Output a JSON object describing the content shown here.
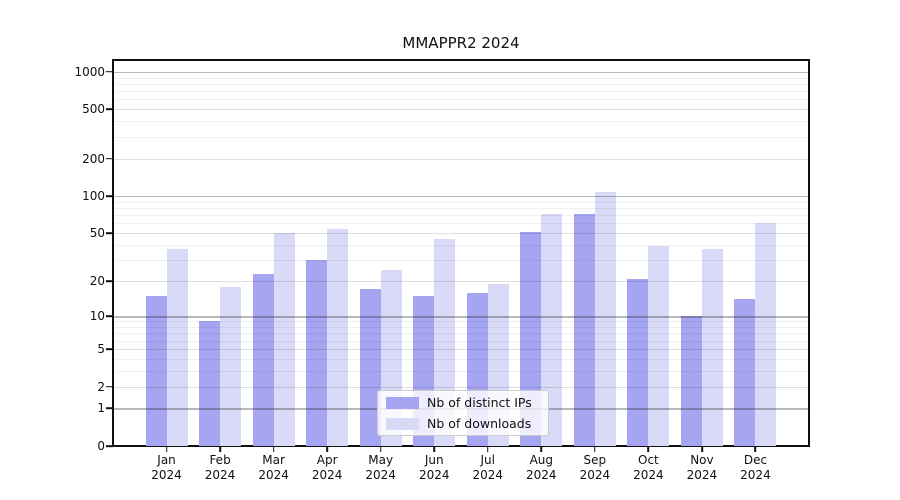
{
  "title": "MMAPPR2 2024",
  "chart_data": {
    "type": "bar",
    "title": "MMAPPR2 2024",
    "xlabel": "",
    "ylabel": "",
    "categories": [
      "Jan",
      "Feb",
      "Mar",
      "Apr",
      "May",
      "Jun",
      "Jul",
      "Aug",
      "Sep",
      "Oct",
      "Nov",
      "Dec"
    ],
    "year_label": "2024",
    "series": [
      {
        "name": "Nb of distinct IPs",
        "color": "#a5a5f2",
        "values": [
          15,
          9,
          23,
          30,
          17,
          15,
          16,
          51,
          71,
          21,
          10,
          14
        ]
      },
      {
        "name": "Nb of downloads",
        "color": "#d9d9f8",
        "values": [
          37,
          18,
          50,
          54,
          25,
          45,
          19,
          71,
          108,
          39,
          37,
          60
        ]
      }
    ],
    "yticks": [
      0,
      1,
      2,
      5,
      10,
      20,
      50,
      100,
      200,
      500,
      1000
    ],
    "ytick_labels": [
      "0",
      "1",
      "2",
      "5",
      "10",
      "20",
      "50",
      "100",
      "200",
      "500",
      "1000"
    ],
    "scale": "log1p",
    "ylim": [
      0,
      1220
    ],
    "grid": "on",
    "legend_position": "lower center"
  },
  "colors": {
    "distinct_ips": "#a5a5f2",
    "downloads": "#d9d9f8",
    "major_grid": "#aaaaaa",
    "minor_grid": "#efefef"
  }
}
